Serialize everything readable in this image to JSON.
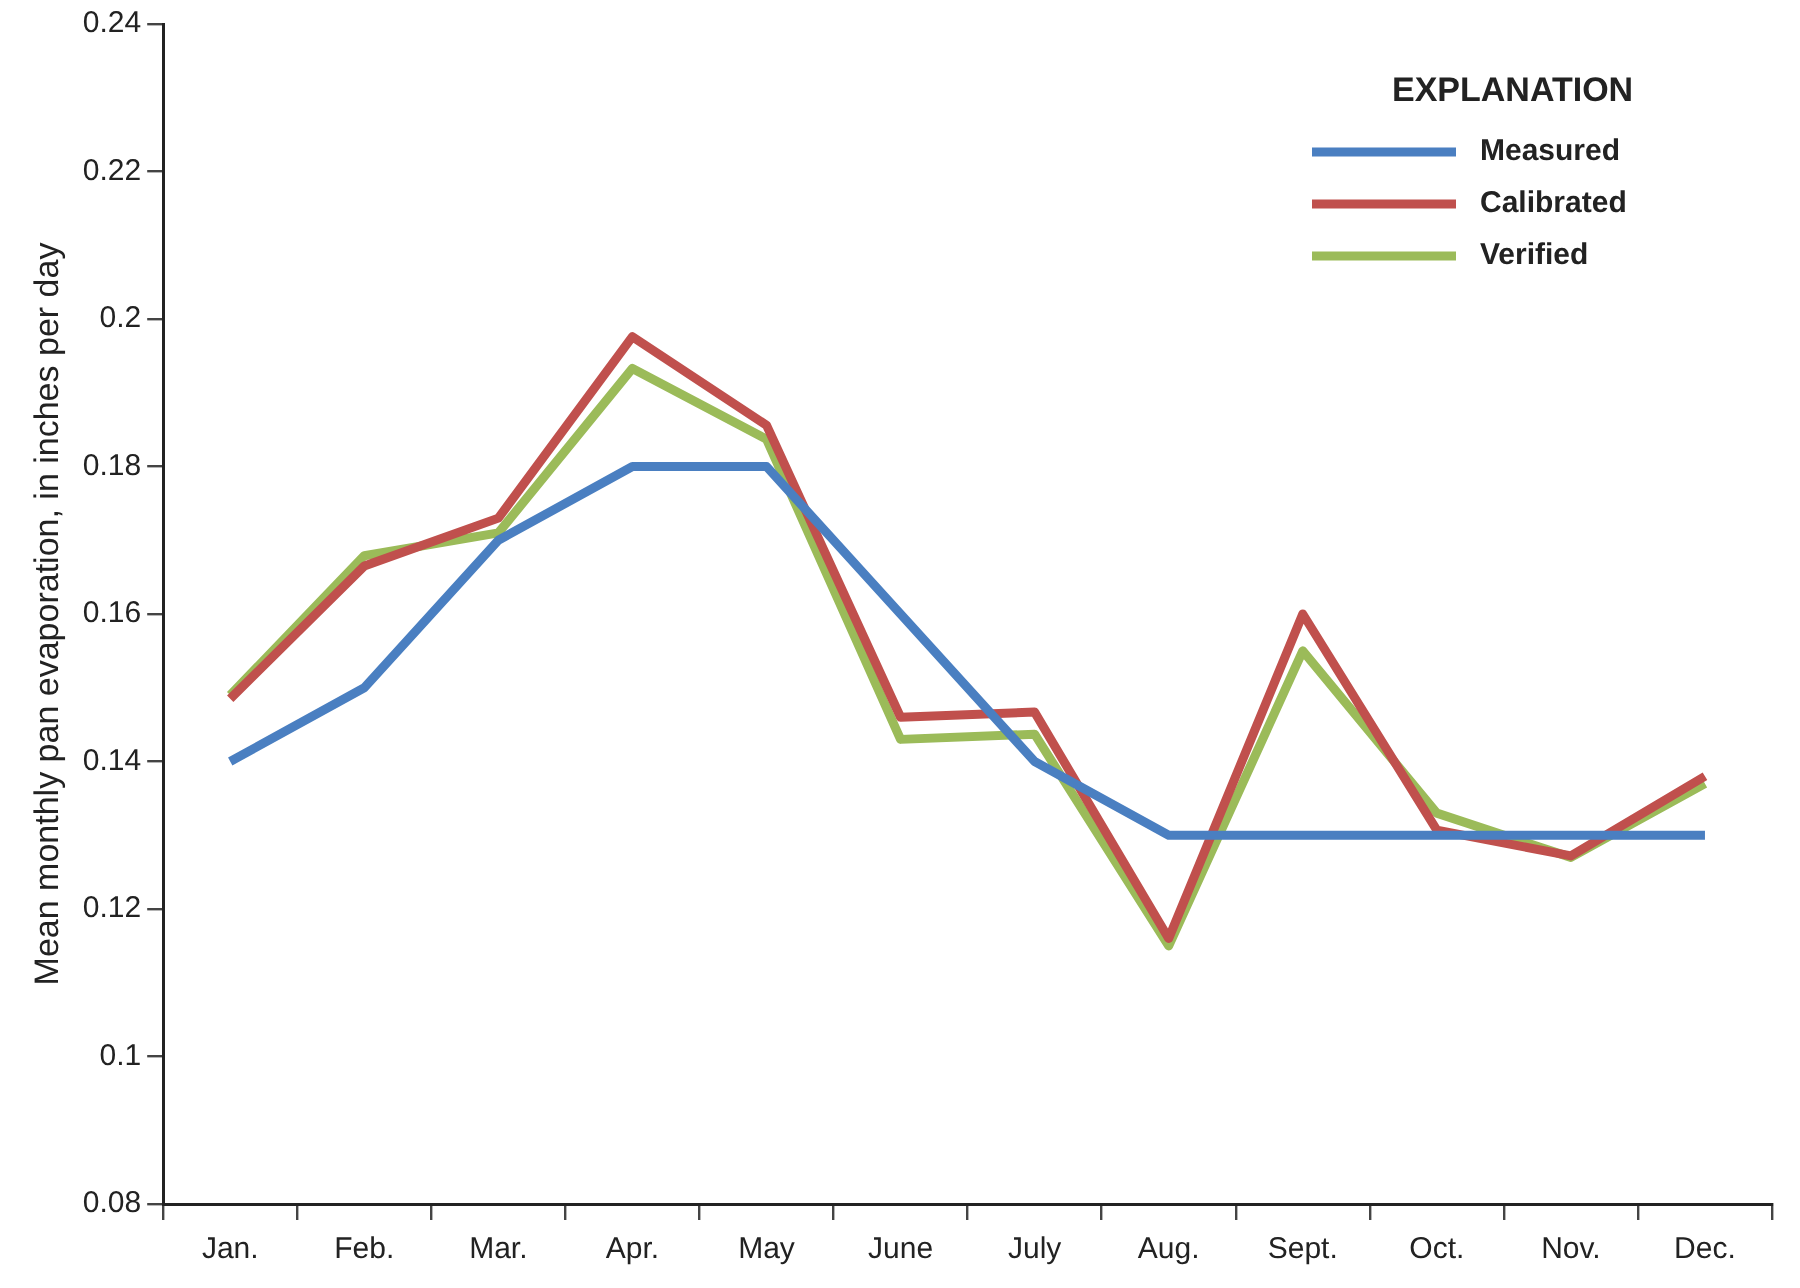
{
  "chart_data": {
    "type": "line",
    "ylabel": "Mean monthly pan evaporation, in inches per day",
    "legend_title": "EXPLANATION",
    "legend": "top right",
    "grid": false,
    "marker": "none",
    "line_style": "solid",
    "categories": [
      "Jan.",
      "Feb.",
      "Mar.",
      "Apr.",
      "May",
      "June",
      "July",
      "Aug.",
      "Sept.",
      "Oct.",
      "Nov.",
      "Dec."
    ],
    "ylim": [
      0.08,
      0.24
    ],
    "yticks": [
      0.08,
      0.1,
      0.12,
      0.14,
      0.16,
      0.18,
      0.2,
      0.22,
      0.24
    ],
    "series": [
      {
        "name": "Measured",
        "color": "#4a7fc1",
        "values": [
          0.14,
          0.15,
          0.17,
          0.18,
          0.18,
          0.16,
          0.14,
          0.13,
          0.13,
          0.13,
          0.13,
          0.13
        ]
      },
      {
        "name": "Calibrated",
        "color": "#c0504d",
        "values": [
          0.1485,
          0.1665,
          0.173,
          0.1976,
          0.1856,
          0.146,
          0.1467,
          0.116,
          0.16,
          0.1307,
          0.1272,
          0.138
        ]
      },
      {
        "name": "Verified",
        "color": "#9bbb59",
        "values": [
          0.149,
          0.1679,
          0.171,
          0.1933,
          0.1837,
          0.143,
          0.1437,
          0.115,
          0.155,
          0.133,
          0.127,
          0.137
        ]
      }
    ]
  }
}
